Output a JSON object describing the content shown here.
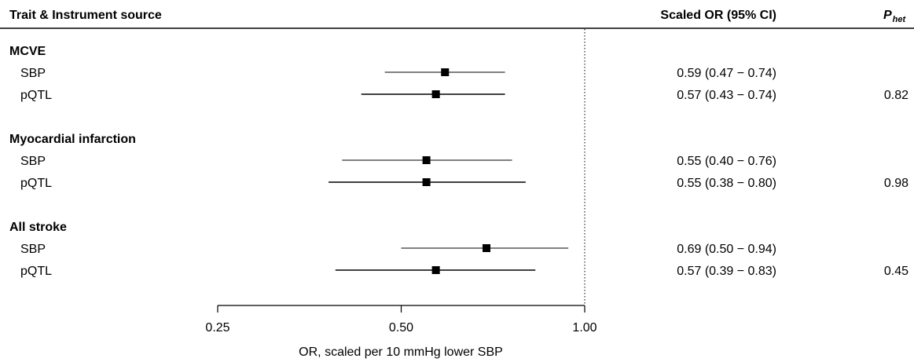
{
  "header": {
    "trait_label": "Trait & Instrument source",
    "or_label": "Scaled OR (95% CI)",
    "phet_main": "P",
    "phet_sub": "het"
  },
  "chart_data": {
    "type": "forest",
    "x_scale": "log",
    "xlim": [
      0.25,
      1.0
    ],
    "x_ticks": [
      0.25,
      0.5,
      1.0
    ],
    "x_tick_labels": [
      "0.25",
      "0.50",
      "1.00"
    ],
    "reference_line": 1.0,
    "xlabel": "OR, scaled per 10 mmHg lower SBP",
    "groups": [
      {
        "name": "MCVE",
        "phet": "0.82",
        "rows": [
          {
            "label": "SBP",
            "or": 0.59,
            "lo": 0.47,
            "hi": 0.74,
            "text": "0.59 (0.47 − 0.74)"
          },
          {
            "label": "pQTL",
            "or": 0.57,
            "lo": 0.43,
            "hi": 0.74,
            "text": "0.57 (0.43 − 0.74)"
          }
        ]
      },
      {
        "name": "Myocardial infarction",
        "phet": "0.98",
        "rows": [
          {
            "label": "SBP",
            "or": 0.55,
            "lo": 0.4,
            "hi": 0.76,
            "text": "0.55 (0.40 − 0.76)"
          },
          {
            "label": "pQTL",
            "or": 0.55,
            "lo": 0.38,
            "hi": 0.8,
            "text": "0.55 (0.38 − 0.80)"
          }
        ]
      },
      {
        "name": "All stroke",
        "phet": "0.45",
        "rows": [
          {
            "label": "SBP",
            "or": 0.69,
            "lo": 0.5,
            "hi": 0.94,
            "text": "0.69 (0.50 − 0.94)"
          },
          {
            "label": "pQTL",
            "or": 0.57,
            "lo": 0.39,
            "hi": 0.83,
            "text": "0.57 (0.39 − 0.83)"
          }
        ]
      }
    ]
  },
  "colors": {
    "ink": "#000000",
    "background": "#ffffff"
  }
}
